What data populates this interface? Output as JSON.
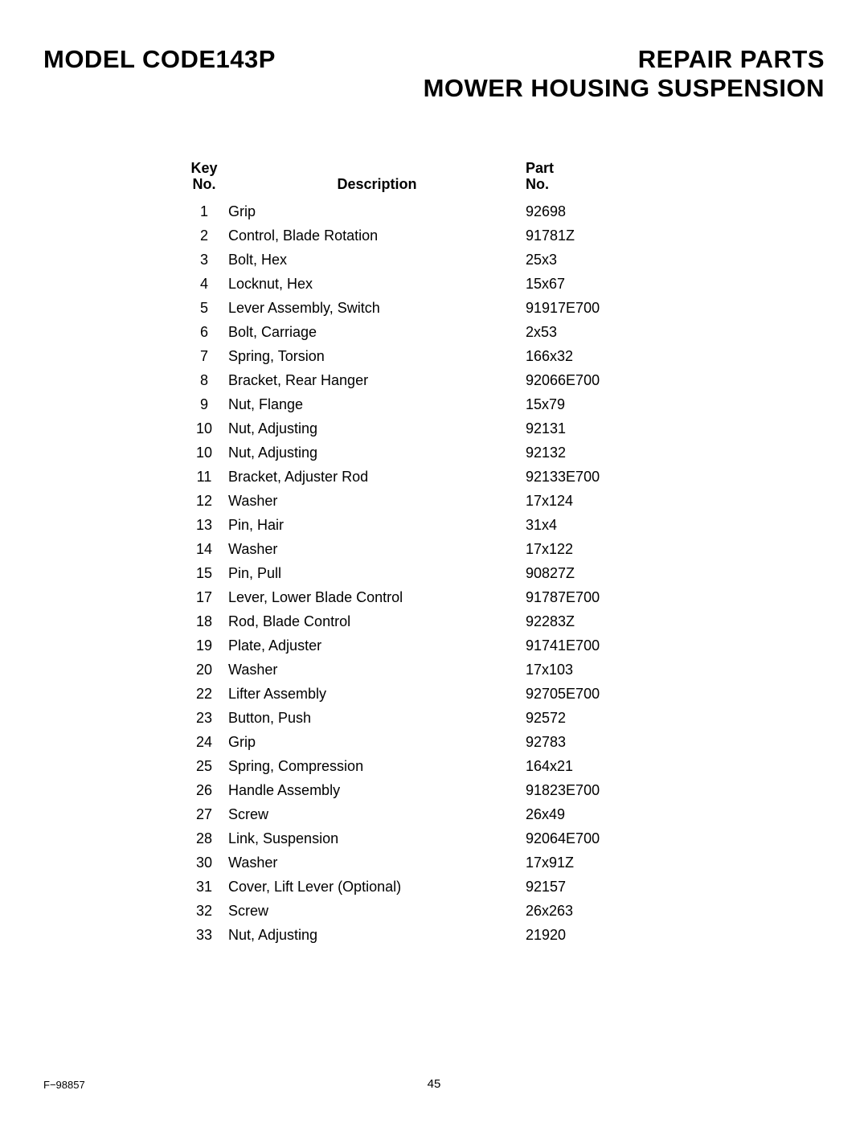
{
  "header": {
    "model_code": "MODEL CODE143P",
    "repair_parts": "REPAIR PARTS",
    "section_title": "MOWER HOUSING SUSPENSION"
  },
  "table": {
    "headers": {
      "key_no_line1": "Key",
      "key_no_line2": "No.",
      "description": "Description",
      "part_no_line1": "Part",
      "part_no_line2": "No."
    },
    "rows": [
      {
        "key": "1",
        "description": "Grip",
        "part": "92698"
      },
      {
        "key": "2",
        "description": "Control, Blade Rotation",
        "part": "91781Z"
      },
      {
        "key": "3",
        "description": "Bolt, Hex",
        "part": "25x3"
      },
      {
        "key": "4",
        "description": "Locknut, Hex",
        "part": "15x67"
      },
      {
        "key": "5",
        "description": "Lever Assembly, Switch",
        "part": "91917E700"
      },
      {
        "key": "6",
        "description": "Bolt, Carriage",
        "part": "2x53"
      },
      {
        "key": "7",
        "description": "Spring, Torsion",
        "part": "166x32"
      },
      {
        "key": "8",
        "description": "Bracket, Rear Hanger",
        "part": "92066E700"
      },
      {
        "key": "9",
        "description": "Nut, Flange",
        "part": "15x79"
      },
      {
        "key": "10",
        "description": "Nut, Adjusting",
        "part": "92131"
      },
      {
        "key": "10",
        "description": "Nut, Adjusting",
        "part": "92132"
      },
      {
        "key": "11",
        "description": "Bracket, Adjuster Rod",
        "part": "92133E700"
      },
      {
        "key": "12",
        "description": "Washer",
        "part": "17x124"
      },
      {
        "key": "13",
        "description": "Pin, Hair",
        "part": "31x4"
      },
      {
        "key": "14",
        "description": "Washer",
        "part": "17x122"
      },
      {
        "key": "15",
        "description": "Pin, Pull",
        "part": "90827Z"
      },
      {
        "key": "17",
        "description": "Lever, Lower Blade Control",
        "part": "91787E700"
      },
      {
        "key": "18",
        "description": "Rod, Blade Control",
        "part": "92283Z"
      },
      {
        "key": "19",
        "description": "Plate, Adjuster",
        "part": "91741E700"
      },
      {
        "key": "20",
        "description": "Washer",
        "part": "17x103"
      },
      {
        "key": "22",
        "description": "Lifter Assembly",
        "part": "92705E700"
      },
      {
        "key": "23",
        "description": "Button, Push",
        "part": "92572"
      },
      {
        "key": "24",
        "description": "Grip",
        "part": "92783"
      },
      {
        "key": "25",
        "description": "Spring, Compression",
        "part": "164x21"
      },
      {
        "key": "26",
        "description": "Handle Assembly",
        "part": "91823E700"
      },
      {
        "key": "27",
        "description": "Screw",
        "part": "26x49"
      },
      {
        "key": "28",
        "description": "Link, Suspension",
        "part": "92064E700"
      },
      {
        "key": "30",
        "description": "Washer",
        "part": "17x91Z"
      },
      {
        "key": "31",
        "description": "Cover, Lift Lever (Optional)",
        "part": "92157"
      },
      {
        "key": "32",
        "description": "Screw",
        "part": "26x263"
      },
      {
        "key": "33",
        "description": "Nut, Adjusting",
        "part": "21920"
      }
    ]
  },
  "footer": {
    "doc_number": "F−98857",
    "page_number": "45"
  }
}
